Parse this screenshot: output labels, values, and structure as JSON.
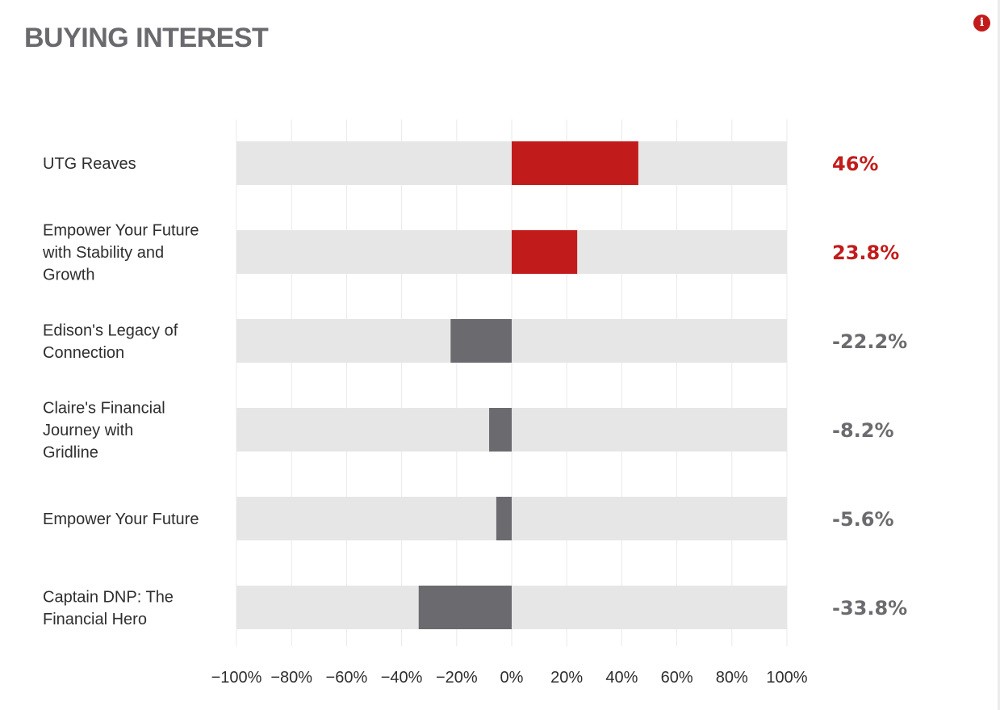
{
  "header": {
    "title": "BUYING INTEREST",
    "info_icon": "info-icon"
  },
  "colors": {
    "positive": "#c21b1b",
    "negative": "#6b6b6f",
    "track": "#e6e6e6",
    "grid": "#e9e9e9",
    "title": "#6a6a6e"
  },
  "chart_data": {
    "type": "bar",
    "orientation": "horizontal",
    "title": "BUYING INTEREST",
    "categories": [
      [
        "UTG Reaves"
      ],
      [
        "Empower Your Future",
        "with Stability and",
        "Growth"
      ],
      [
        "Edison's Legacy of",
        "Connection"
      ],
      [
        "Claire's Financial",
        "Journey with",
        "Gridline"
      ],
      [
        "Empower Your Future"
      ],
      [
        "Captain DNP: The",
        "Financial Hero"
      ]
    ],
    "values": [
      46,
      23.8,
      -22.2,
      -8.2,
      -5.6,
      -33.8
    ],
    "value_labels": [
      "46%",
      "23.8%",
      "-22.2%",
      "-8.2%",
      "-5.6%",
      "-33.8%"
    ],
    "xlim": [
      -100,
      100
    ],
    "xticks": [
      -100,
      -80,
      -60,
      -40,
      -20,
      0,
      20,
      40,
      60,
      80,
      100
    ],
    "xtick_labels": [
      "−100%",
      "−80%",
      "−60%",
      "−40%",
      "−20%",
      "0%",
      "20%",
      "40%",
      "60%",
      "80%",
      "100%"
    ],
    "grid": true,
    "legend": "none"
  }
}
